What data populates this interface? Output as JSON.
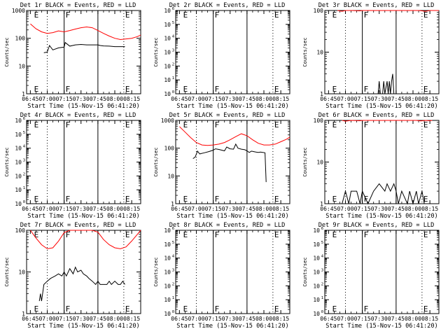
{
  "figure": {
    "start_time_label": "Start Time (15-Nov-15 06:41:20)",
    "ylabel": "Counts/sec",
    "xticks": [
      "06:45",
      "07:00",
      "07:15",
      "07:30",
      "07:45",
      "08:00",
      "08:15"
    ],
    "x_range_min": [
      -3.33,
      98
    ],
    "colors": {
      "events": "#000000",
      "lld": "#ff0000",
      "axis": "#000000"
    }
  },
  "chart_data": [
    {
      "type": "line",
      "title": "Det 1r BLACK = Events, RED = LLD",
      "scale": "log",
      "ylim": [
        1,
        1000
      ],
      "yticks": [
        "1",
        "10",
        "100",
        "1000"
      ],
      "markers": [
        {
          "t": 2,
          "label": "E"
        },
        {
          "t": 30,
          "label": "F"
        },
        {
          "t": 83,
          "label": "E"
        }
      ],
      "vlines_dotted": [
        15,
        83
      ],
      "vlines_solid": [
        30,
        60
      ],
      "series": [
        {
          "name": "LLD",
          "color": "#ff0000",
          "points": [
            [
              0,
              330
            ],
            [
              5,
              220
            ],
            [
              10,
              170
            ],
            [
              15,
              150
            ],
            [
              20,
              160
            ],
            [
              25,
              185
            ],
            [
              30,
              170
            ],
            [
              35,
              190
            ],
            [
              40,
              215
            ],
            [
              45,
              240
            ],
            [
              50,
              255
            ],
            [
              55,
              240
            ],
            [
              60,
              190
            ],
            [
              65,
              150
            ],
            [
              70,
              120
            ],
            [
              75,
              100
            ],
            [
              80,
              90
            ],
            [
              85,
              95
            ],
            [
              90,
              100
            ],
            [
              95,
              115
            ],
            [
              98,
              130
            ]
          ]
        },
        {
          "name": "Events",
          "color": "#000000",
          "points": [
            [
              12,
              30
            ],
            [
              15,
              32
            ],
            [
              17,
              55
            ],
            [
              20,
              38
            ],
            [
              25,
              45
            ],
            [
              30,
              48
            ],
            [
              31,
              70
            ],
            [
              35,
              52
            ],
            [
              40,
              58
            ],
            [
              45,
              60
            ],
            [
              50,
              58
            ],
            [
              55,
              58
            ],
            [
              60,
              58
            ],
            [
              62,
              55
            ],
            [
              65,
              53
            ],
            [
              70,
              52
            ],
            [
              75,
              50
            ],
            [
              80,
              50
            ],
            [
              84,
              50
            ]
          ]
        }
      ]
    },
    {
      "type": "line",
      "title": "Det 2r BLACK = Events, RED = LLD",
      "scale": "log",
      "ylim": [
        1,
        1000000
      ],
      "yticks": [
        "10^0",
        "10^1",
        "10^2",
        "10^3",
        "10^4",
        "10^5",
        "10^6"
      ],
      "markers": [
        {
          "t": 2,
          "label": "E"
        },
        {
          "t": 30,
          "label": "F"
        },
        {
          "t": 83,
          "label": "E"
        }
      ],
      "vlines_dotted": [
        15,
        83
      ],
      "vlines_solid": [
        30,
        60
      ],
      "series": []
    },
    {
      "type": "line",
      "title": "Det 3r BLACK = Events, RED = LLD",
      "scale": "log",
      "ylim": [
        1,
        100
      ],
      "yticks": [
        "1",
        "10",
        "100"
      ],
      "markers": [
        {
          "t": 2,
          "label": "E"
        },
        {
          "t": 30,
          "label": "F"
        },
        {
          "t": 83,
          "label": "E"
        }
      ],
      "vlines_dotted": [
        15,
        83
      ],
      "vlines_solid": [
        30,
        60
      ],
      "series": [
        {
          "name": "LLD",
          "color": "#ff0000",
          "points": [
            [
              8,
              100
            ],
            [
              12,
              96
            ],
            [
              15,
              100
            ],
            [
              20,
              100
            ],
            [
              28,
              98
            ],
            [
              30,
              100
            ],
            [
              80,
              100
            ],
            [
              83,
              98
            ],
            [
              86,
              96
            ],
            [
              90,
              100
            ],
            [
              98,
              100
            ]
          ]
        },
        {
          "name": "Events",
          "color": "#000000",
          "points": [
            [
              44,
              1
            ],
            [
              45,
              2
            ],
            [
              46,
              1
            ],
            [
              48,
              1
            ],
            [
              49,
              2
            ],
            [
              50,
              1
            ],
            [
              52,
              2
            ],
            [
              53,
              1
            ],
            [
              54,
              2
            ],
            [
              55,
              1
            ],
            [
              56,
              2
            ],
            [
              57,
              3
            ],
            [
              58,
              1
            ],
            [
              60,
              1
            ]
          ]
        }
      ]
    },
    {
      "type": "line",
      "title": "Det 4r BLACK = Events, RED = LLD",
      "scale": "log",
      "ylim": [
        1,
        1000000
      ],
      "yticks": [
        "10^0",
        "10^1",
        "10^2",
        "10^3",
        "10^4",
        "10^5",
        "10^6"
      ],
      "markers": [
        {
          "t": 2,
          "label": "E"
        },
        {
          "t": 30,
          "label": "F"
        },
        {
          "t": 83,
          "label": "E"
        }
      ],
      "vlines_dotted": [
        15,
        83
      ],
      "vlines_solid": [
        30,
        60
      ],
      "series": []
    },
    {
      "type": "line",
      "title": "Det 5r BLACK = Events, RED = LLD",
      "scale": "log",
      "ylim": [
        1,
        1000
      ],
      "yticks": [
        "1",
        "10",
        "100",
        "1000"
      ],
      "markers": [
        {
          "t": 2,
          "label": "E"
        },
        {
          "t": 30,
          "label": "F"
        },
        {
          "t": 83,
          "label": "E"
        }
      ],
      "vlines_dotted": [
        15,
        83
      ],
      "vlines_solid": [
        30,
        60
      ],
      "series": [
        {
          "name": "LLD",
          "color": "#ff0000",
          "points": [
            [
              0,
              600
            ],
            [
              5,
              380
            ],
            [
              10,
              240
            ],
            [
              15,
              160
            ],
            [
              20,
              130
            ],
            [
              25,
              125
            ],
            [
              30,
              130
            ],
            [
              35,
              140
            ],
            [
              40,
              160
            ],
            [
              45,
              200
            ],
            [
              50,
              260
            ],
            [
              55,
              330
            ],
            [
              60,
              280
            ],
            [
              65,
              200
            ],
            [
              70,
              150
            ],
            [
              75,
              130
            ],
            [
              80,
              130
            ],
            [
              85,
              140
            ],
            [
              90,
              170
            ],
            [
              95,
              210
            ],
            [
              98,
              250
            ]
          ]
        },
        {
          "name": "Events",
          "color": "#000000",
          "points": [
            [
              12,
              42
            ],
            [
              14,
              48
            ],
            [
              16,
              78
            ],
            [
              18,
              62
            ],
            [
              22,
              68
            ],
            [
              26,
              75
            ],
            [
              30,
              85
            ],
            [
              32,
              95
            ],
            [
              35,
              90
            ],
            [
              40,
              80
            ],
            [
              42,
              110
            ],
            [
              45,
              95
            ],
            [
              48,
              92
            ],
            [
              50,
              140
            ],
            [
              52,
              100
            ],
            [
              55,
              92
            ],
            [
              58,
              88
            ],
            [
              60,
              80
            ],
            [
              62,
              70
            ],
            [
              64,
              78
            ],
            [
              66,
              75
            ],
            [
              68,
              72
            ],
            [
              70,
              70
            ],
            [
              72,
              72
            ],
            [
              74,
              70
            ],
            [
              76,
              68
            ],
            [
              77,
              6
            ]
          ]
        }
      ]
    },
    {
      "type": "line",
      "title": "Det 6r BLACK = Events, RED = LLD",
      "scale": "log",
      "ylim": [
        1,
        100
      ],
      "yticks": [
        "1",
        "10",
        "100"
      ],
      "markers": [
        {
          "t": 2,
          "label": "E"
        },
        {
          "t": 30,
          "label": "F"
        },
        {
          "t": 83,
          "label": "E"
        }
      ],
      "vlines_dotted": [
        15,
        83
      ],
      "vlines_solid": [
        30,
        60
      ],
      "series": [
        {
          "name": "LLD",
          "color": "#ff0000",
          "points": [
            [
              12,
              100
            ],
            [
              15,
              96
            ],
            [
              20,
              100
            ],
            [
              28,
              98
            ],
            [
              30,
              100
            ],
            [
              78,
              100
            ],
            [
              82,
              97
            ],
            [
              86,
              100
            ],
            [
              90,
              98
            ],
            [
              92,
              100
            ]
          ]
        },
        {
          "name": "Events",
          "color": "#000000",
          "points": [
            [
              12,
              1
            ],
            [
              15,
              2
            ],
            [
              18,
              1
            ],
            [
              20,
              2
            ],
            [
              25,
              2
            ],
            [
              28,
              1
            ],
            [
              30,
              2
            ],
            [
              35,
              1
            ],
            [
              40,
              2
            ],
            [
              45,
              3
            ],
            [
              50,
              2
            ],
            [
              52,
              3
            ],
            [
              55,
              2
            ],
            [
              58,
              3
            ],
            [
              60,
              2
            ],
            [
              62,
              1
            ],
            [
              65,
              2
            ],
            [
              70,
              1
            ],
            [
              72,
              2
            ],
            [
              75,
              1
            ],
            [
              78,
              2
            ],
            [
              80,
              1
            ],
            [
              83,
              2
            ],
            [
              85,
              1
            ]
          ]
        }
      ]
    },
    {
      "type": "line",
      "title": "Det 7r BLACK = Events, RED = LLD",
      "scale": "log",
      "ylim": [
        1,
        100
      ],
      "yticks": [
        "1",
        "10",
        "100"
      ],
      "markers": [
        {
          "t": 2,
          "label": "E"
        },
        {
          "t": 30,
          "label": "F"
        },
        {
          "t": 83,
          "label": "E"
        }
      ],
      "vlines_dotted": [
        15,
        83
      ],
      "vlines_solid": [
        30,
        60
      ],
      "series": [
        {
          "name": "LLD",
          "color": "#ff0000",
          "points": [
            [
              0,
              100
            ],
            [
              5,
              65
            ],
            [
              10,
              45
            ],
            [
              15,
              36
            ],
            [
              20,
              38
            ],
            [
              25,
              55
            ],
            [
              30,
              88
            ],
            [
              35,
              100
            ],
            [
              55,
              100
            ],
            [
              60,
              90
            ],
            [
              65,
              60
            ],
            [
              70,
              45
            ],
            [
              75,
              38
            ],
            [
              80,
              36
            ],
            [
              85,
              40
            ],
            [
              90,
              55
            ],
            [
              95,
              80
            ],
            [
              98,
              100
            ]
          ]
        },
        {
          "name": "Events",
          "color": "#000000",
          "points": [
            [
              8,
              2
            ],
            [
              9,
              3
            ],
            [
              10,
              2
            ],
            [
              12,
              5
            ],
            [
              15,
              6
            ],
            [
              18,
              7
            ],
            [
              22,
              8
            ],
            [
              25,
              9
            ],
            [
              28,
              8
            ],
            [
              30,
              10
            ],
            [
              32,
              8
            ],
            [
              35,
              12
            ],
            [
              38,
              9
            ],
            [
              40,
              13
            ],
            [
              42,
              10
            ],
            [
              45,
              11
            ],
            [
              47,
              9
            ],
            [
              50,
              8
            ],
            [
              52,
              7
            ],
            [
              55,
              6
            ],
            [
              58,
              5
            ],
            [
              60,
              6
            ],
            [
              62,
              5
            ],
            [
              65,
              5
            ],
            [
              68,
              5
            ],
            [
              70,
              6
            ],
            [
              72,
              5
            ],
            [
              75,
              6
            ],
            [
              78,
              5
            ],
            [
              80,
              5
            ],
            [
              82,
              6
            ],
            [
              84,
              5
            ]
          ]
        }
      ]
    },
    {
      "type": "line",
      "title": "Det 8r BLACK = Events, RED = LLD",
      "scale": "log",
      "ylim": [
        1,
        1000000
      ],
      "yticks": [
        "10^0",
        "10^1",
        "10^2",
        "10^3",
        "10^4",
        "10^5",
        "10^6"
      ],
      "markers": [
        {
          "t": 2,
          "label": "E"
        },
        {
          "t": 30,
          "label": "F"
        },
        {
          "t": 83,
          "label": "E"
        }
      ],
      "vlines_dotted": [
        15,
        83
      ],
      "vlines_solid": [
        30,
        60
      ],
      "series": []
    },
    {
      "type": "line",
      "title": "Det 9r BLACK = Events, RED = LLD",
      "scale": "log",
      "ylim": [
        1,
        1000000
      ],
      "yticks": [
        "10^0",
        "10^1",
        "10^2",
        "10^3",
        "10^4",
        "10^5",
        "10^6"
      ],
      "markers": [
        {
          "t": 2,
          "label": "E"
        },
        {
          "t": 30,
          "label": "F"
        },
        {
          "t": 83,
          "label": "E"
        }
      ],
      "vlines_dotted": [
        15,
        83
      ],
      "vlines_solid": [
        30,
        60
      ],
      "series": []
    }
  ]
}
